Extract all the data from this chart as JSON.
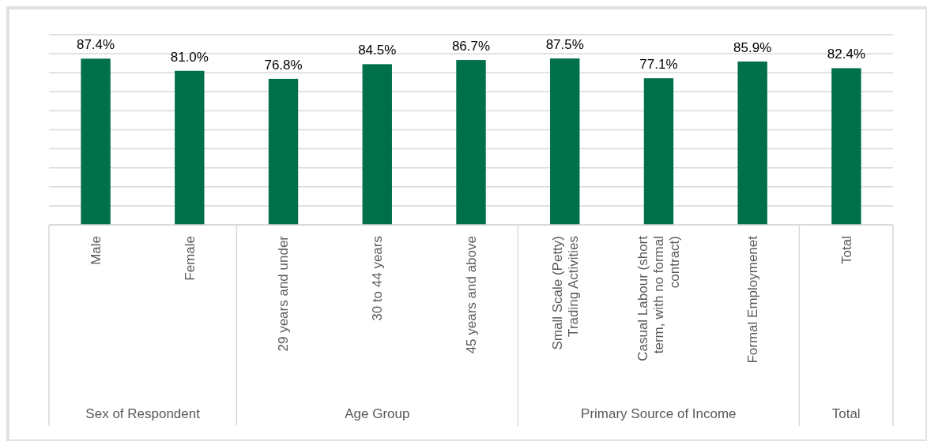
{
  "chart_data": {
    "type": "bar",
    "categories": [
      "Male",
      "Female",
      "29 years and under",
      "30 to 44 years",
      "45 years and above",
      "Small Scale (Petty) Trading Activities",
      "Casual Labour (short term, with no formal contract)",
      "Formal Employmenet",
      "Total"
    ],
    "values": [
      87.4,
      81.0,
      76.8,
      84.5,
      86.7,
      87.5,
      77.1,
      85.9,
      82.4
    ],
    "value_labels": [
      "87.4%",
      "81.0%",
      "76.8%",
      "84.5%",
      "86.7%",
      "87.5%",
      "77.1%",
      "85.9%",
      "82.4%"
    ],
    "color": "#00704a",
    "ylim": [
      0,
      100
    ],
    "yticks": [
      {
        "value": 0,
        "label": null
      },
      {
        "value": 10,
        "label": null
      },
      {
        "value": 20,
        "label": null
      },
      {
        "value": 30,
        "label": null
      },
      {
        "value": 40,
        "label": null
      },
      {
        "value": 50,
        "label": null
      },
      {
        "value": 60,
        "label": null
      },
      {
        "value": 70,
        "label": null
      },
      {
        "value": 80,
        "label": null
      },
      {
        "value": 90,
        "label": null
      },
      {
        "value": 100,
        "label": null
      }
    ],
    "tick_labels": "x",
    "grid": "y",
    "annotations": [
      "Sex of Respondent",
      "Age Group",
      "Primary Source of Income",
      "Total"
    ]
  }
}
